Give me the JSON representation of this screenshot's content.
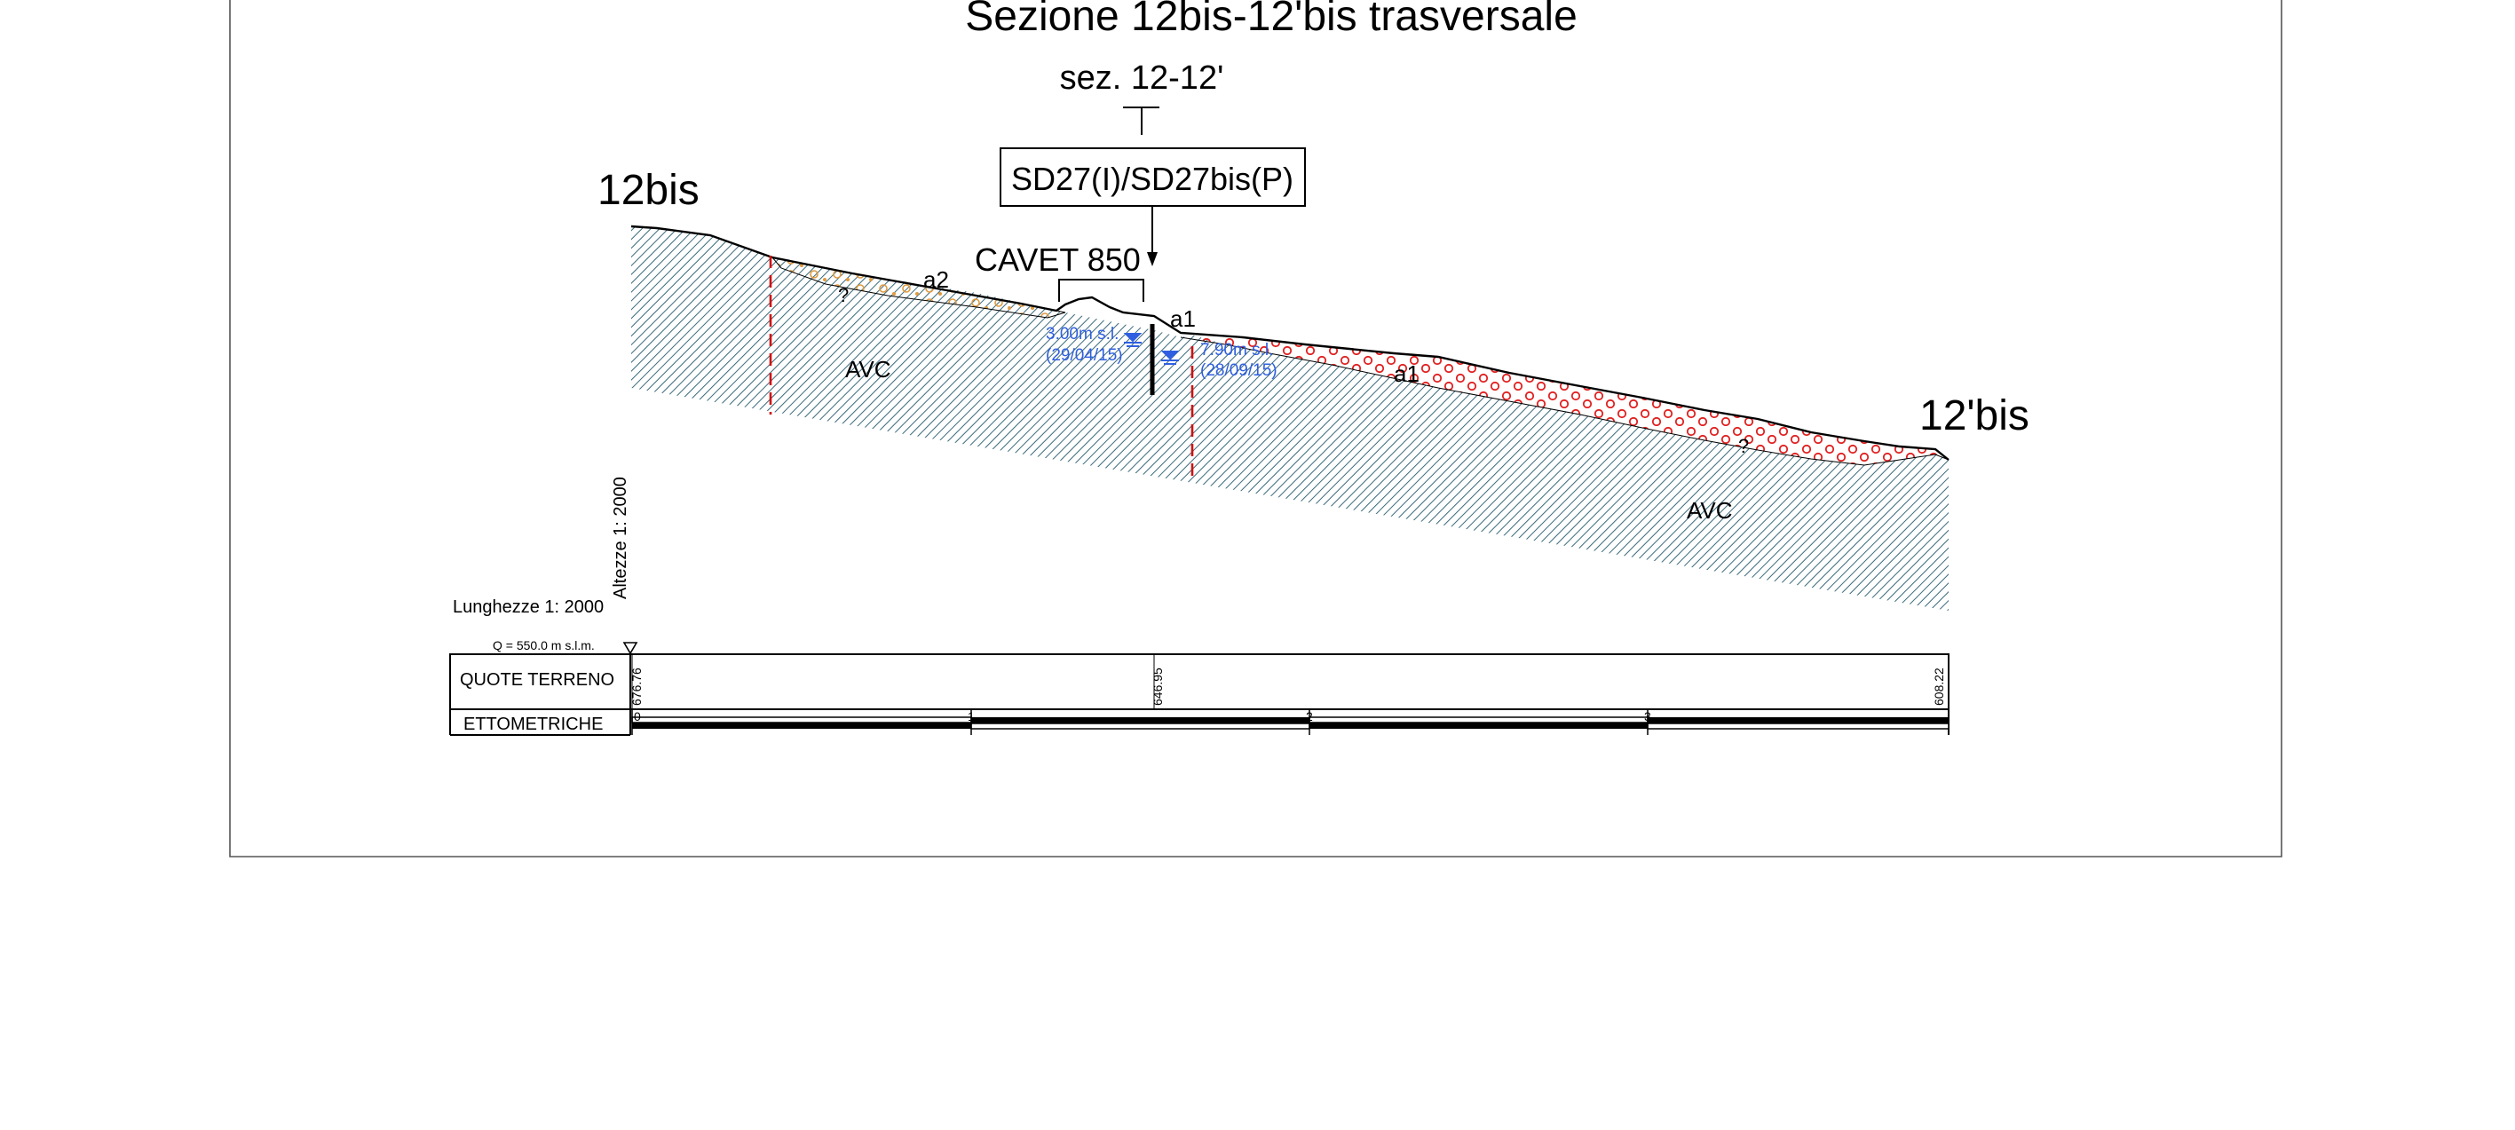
{
  "title": "Sezione 12bis-12'bis trasversale",
  "cross_section_label": "sez. 12-12'",
  "borehole_label": "SD27(I)/SD27bis(P)",
  "cavet_label": "CAVET 850",
  "start_label": "12bis",
  "end_label": "12'bis",
  "units": {
    "a2": "a2",
    "a1_top": "a1",
    "a1_mid": "a1",
    "avc_left": "AVC",
    "avc_right": "AVC",
    "question_left": "?",
    "question_right": "?"
  },
  "water_levels": [
    {
      "depth": "3.00m s.l.",
      "date": "(29/04/15)"
    },
    {
      "depth": "7.90m s.l.",
      "date": "(28/09/15)"
    }
  ],
  "scales": {
    "heights": "Altezze 1: 2000",
    "lengths": "Lunghezze 1: 2000"
  },
  "datum": "Q =  550.0 m s.l.m.",
  "table": {
    "row1_label": "QUOTE TERRENO",
    "row2_label": "ETTOMETRICHE",
    "elevations": [
      "676.76",
      "646.95",
      "608.22"
    ],
    "ettometriche": [
      "0",
      "1",
      "2",
      "3"
    ]
  },
  "colors": {
    "hatch": "#3a6a7a",
    "fault": "#d01010",
    "water": "#2f5fe0",
    "a1_circles": "#e02020",
    "a2_circles": "#e09a40"
  }
}
